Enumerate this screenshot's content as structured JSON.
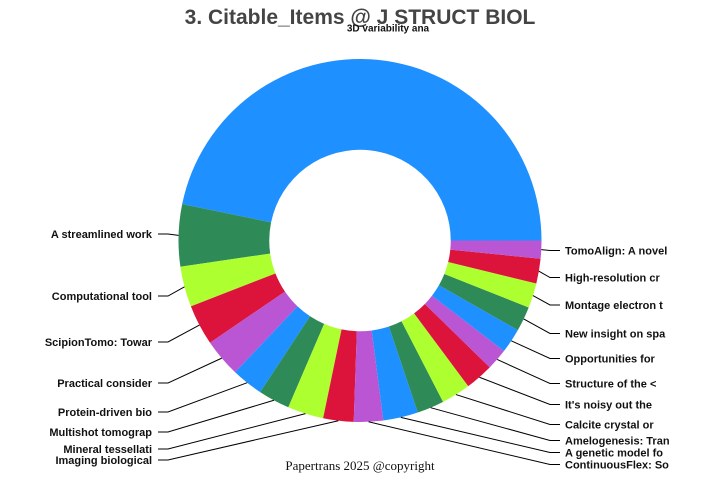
{
  "title": "3. Citable_Items @ J STRUCT BIOL",
  "footer": "Papertrans 2025 @copyright",
  "chart_data": {
    "type": "pie",
    "subtype": "donut",
    "title": "3. Citable_Items @ J STRUCT BIOL",
    "xlabel": "",
    "ylabel": "",
    "legend": "none (labels drawn beside slices with leader lines)",
    "hole_ratio": 0.5,
    "start_angle_deg": 0,
    "direction": "counterclockwise",
    "value_unit": "share of total, % (estimated from slice angles)",
    "labels": [
      "3D variability ana",
      "A streamlined work",
      "Computational tool",
      "ScipionTomo: Towar",
      "Practical consider",
      "Protein-driven bio",
      "Multishot tomograp",
      "Mineral tessellati",
      "Imaging biological",
      "ContinuousFlex: So",
      "A genetic model fo",
      "Amelogenesis: Tran",
      "Calcite crystal or",
      "It's noisy out the",
      "Structure of the <",
      "Opportunities for",
      "New insight on spa",
      "Montage electron t",
      "High-resolution cr",
      "TomoAlign: A novel"
    ],
    "values": [
      46.7,
      5.5,
      3.6,
      3.6,
      3.4,
      2.8,
      2.8,
      3.2,
      2.7,
      2.6,
      3.1,
      2.4,
      2.6,
      2.5,
      1.9,
      2.2,
      2.2,
      2.2,
      2.2,
      1.6
    ],
    "colors": [
      "#1E90FF",
      "#2E8B57",
      "#ADFF2F",
      "#DC143C",
      "#BA55D3",
      "#1E90FF",
      "#2E8B57",
      "#ADFF2F",
      "#DC143C",
      "#BA55D3",
      "#1E90FF",
      "#2E8B57",
      "#ADFF2F",
      "#DC143C",
      "#BA55D3",
      "#1E90FF",
      "#2E8B57",
      "#ADFF2F",
      "#DC143C",
      "#BA55D3"
    ]
  }
}
